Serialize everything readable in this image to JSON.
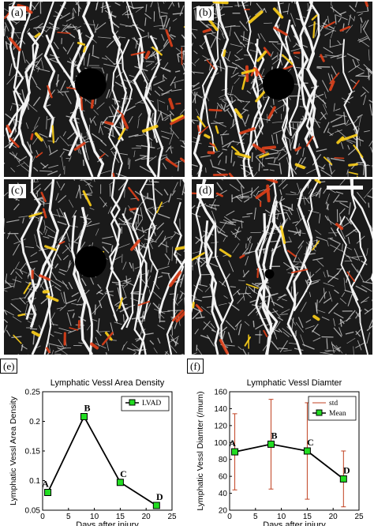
{
  "panels": [
    {
      "label": "(a)",
      "hole": true,
      "heat": 0.55
    },
    {
      "label": "(b)",
      "hole": true,
      "heat": 0.85
    },
    {
      "label": "(c)",
      "hole": true,
      "heat": 0.45
    },
    {
      "label": "(d)",
      "hole": false,
      "heat": 0.35
    }
  ],
  "colors": {
    "vessel": "#d9d9d9",
    "background": "#1a1a1a",
    "heat_low": "#e0401a",
    "heat_high": "#ffd21a",
    "line": "#000000",
    "marker": "#22dd22",
    "errorbar": "#c04020"
  },
  "chart_data": [
    {
      "type": "line",
      "panel_label": "(e)",
      "title": "Lymphatic Vessl Area Density",
      "xlabel": "Days after injury",
      "ylabel": "Lymphatic Vessl Area Density",
      "xlim": [
        0,
        25
      ],
      "ylim": [
        0.05,
        0.25
      ],
      "xticks": [
        "0",
        "5",
        "10",
        "15",
        "20",
        "25"
      ],
      "yticks": [
        "0.05",
        "0.1",
        "0.15",
        "0.2",
        "0.25"
      ],
      "series": [
        {
          "name": "LVAD",
          "x": [
            1,
            8,
            15,
            22
          ],
          "y": [
            0.08,
            0.208,
            0.097,
            0.058
          ]
        }
      ],
      "point_labels": [
        "A",
        "B",
        "C",
        "D"
      ],
      "legend": "top-right"
    },
    {
      "type": "line",
      "panel_label": "(f)",
      "title": "Lymphatic Vessl Diamter",
      "xlabel": "Days after injury",
      "ylabel": "Lymphatic Vessl Diamter (/mum)",
      "xlim": [
        0,
        25
      ],
      "ylim": [
        20,
        160
      ],
      "xticks": [
        "0",
        "5",
        "10",
        "15",
        "20",
        "25"
      ],
      "yticks": [
        "20",
        "40",
        "60",
        "80",
        "100",
        "120",
        "140",
        "160"
      ],
      "series": [
        {
          "name": "Mean",
          "x": [
            1,
            8,
            15,
            22
          ],
          "y": [
            89,
            98,
            90,
            57
          ],
          "std": [
            45,
            53,
            57,
            33
          ]
        }
      ],
      "error_name": "std",
      "point_labels": [
        "A",
        "B",
        "C",
        "D"
      ],
      "legend": "top-right"
    }
  ]
}
